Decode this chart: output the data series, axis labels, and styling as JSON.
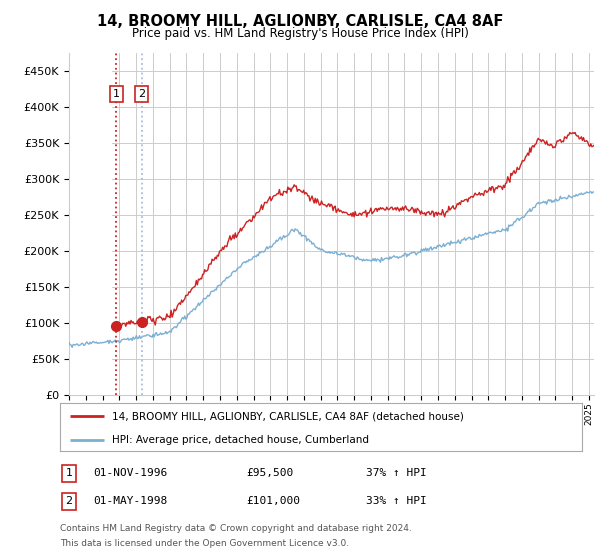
{
  "title": "14, BROOMY HILL, AGLIONBY, CARLISLE, CA4 8AF",
  "subtitle": "Price paid vs. HM Land Registry's House Price Index (HPI)",
  "legend_line1": "14, BROOMY HILL, AGLIONBY, CARLISLE, CA4 8AF (detached house)",
  "legend_line2": "HPI: Average price, detached house, Cumberland",
  "footnote1": "Contains HM Land Registry data © Crown copyright and database right 2024.",
  "footnote2": "This data is licensed under the Open Government Licence v3.0.",
  "transaction1_label": "1",
  "transaction1_date": "01-NOV-1996",
  "transaction1_price": "£95,500",
  "transaction1_hpi": "37% ↑ HPI",
  "transaction2_label": "2",
  "transaction2_date": "01-MAY-1998",
  "transaction2_price": "£101,000",
  "transaction2_hpi": "33% ↑ HPI",
  "ylim": [
    0,
    475000
  ],
  "yticks": [
    0,
    50000,
    100000,
    150000,
    200000,
    250000,
    300000,
    350000,
    400000,
    450000
  ],
  "hpi_color": "#7bafd4",
  "price_color": "#cc2222",
  "transaction_color": "#cc2222",
  "dashed_line1_color": "#cc2222",
  "dashed_line2_color": "#aabbdd",
  "background_color": "#ffffff",
  "grid_color": "#cccccc",
  "transaction1_x": 1996.83,
  "transaction1_y": 95500,
  "transaction2_x": 1998.33,
  "transaction2_y": 101000,
  "hatch_end": 1996.5,
  "xlim_start": 1994,
  "xlim_end": 2025.3
}
